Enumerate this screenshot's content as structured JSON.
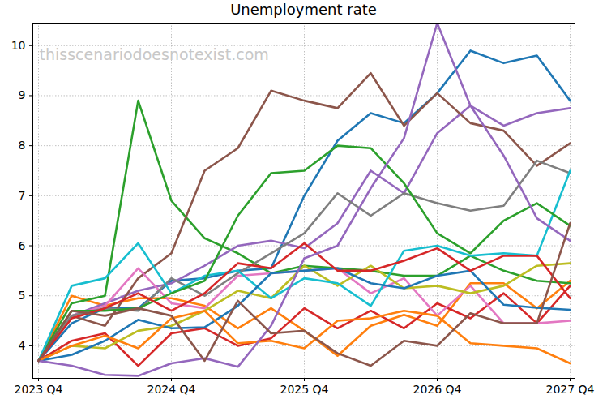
{
  "chart_data": {
    "type": "line",
    "title": "Unemployment rate",
    "annotation": "thisscenariodoesnotexist.com",
    "categories": [
      "2023 Q4",
      null,
      null,
      null,
      "2024 Q4",
      null,
      null,
      null,
      "2025 Q4",
      null,
      null,
      null,
      "2026 Q4",
      null,
      null,
      null,
      "2027 Q4"
    ],
    "ylim": [
      3.35,
      10.45
    ],
    "yticks": [
      4,
      5,
      6,
      7,
      8,
      9,
      10
    ],
    "grid": true,
    "series": [
      {
        "color": "#1f77b4",
        "values": [
          3.7,
          4.45,
          4.75,
          4.75,
          5.3,
          5.35,
          5.5,
          5.55,
          7.0,
          8.1,
          8.65,
          8.45,
          9.05,
          9.9,
          9.65,
          9.8,
          8.9
        ]
      },
      {
        "color": "#ff7f0e",
        "values": [
          3.7,
          5.0,
          4.8,
          4.95,
          4.95,
          4.8,
          4.35,
          4.75,
          4.3,
          3.8,
          4.4,
          4.62,
          4.4,
          5.25,
          5.25,
          4.75,
          5.3
        ]
      },
      {
        "color": "#2ca02c",
        "values": [
          3.7,
          4.85,
          5.0,
          8.9,
          6.9,
          6.15,
          5.85,
          5.45,
          5.6,
          5.55,
          5.5,
          5.4,
          5.4,
          5.8,
          5.5,
          5.3,
          5.25
        ]
      },
      {
        "color": "#d62728",
        "values": [
          3.7,
          4.1,
          4.25,
          3.6,
          4.25,
          4.35,
          4.0,
          4.15,
          4.75,
          4.35,
          4.7,
          4.35,
          4.85,
          4.55,
          5.05,
          4.45,
          5.2
        ]
      },
      {
        "color": "#9467bd",
        "values": [
          3.7,
          4.6,
          4.85,
          5.1,
          5.25,
          5.6,
          6.0,
          6.1,
          5.95,
          6.45,
          7.5,
          7.05,
          8.25,
          8.8,
          8.4,
          8.65,
          8.75
        ]
      },
      {
        "color": "#8c564b",
        "values": [
          3.7,
          4.6,
          4.4,
          5.35,
          5.85,
          7.5,
          7.95,
          9.1,
          8.9,
          8.75,
          9.45,
          8.4,
          9.05,
          8.45,
          8.3,
          7.6,
          8.05
        ]
      },
      {
        "color": "#e377c2",
        "values": [
          3.7,
          4.6,
          4.8,
          5.55,
          4.85,
          4.75,
          5.4,
          5.45,
          5.5,
          5.55,
          5.05,
          5.35,
          4.6,
          5.2,
          4.45,
          4.45,
          4.5
        ]
      },
      {
        "color": "#7f7f7f",
        "values": [
          3.7,
          4.6,
          4.75,
          4.7,
          5.35,
          5.0,
          5.45,
          5.85,
          6.25,
          7.05,
          6.6,
          7.05,
          6.85,
          6.7,
          6.8,
          7.7,
          7.45
        ]
      },
      {
        "color": "#bcbd22",
        "values": [
          3.7,
          4.0,
          3.95,
          4.3,
          4.4,
          4.7,
          5.1,
          4.95,
          5.6,
          5.2,
          5.6,
          5.15,
          5.2,
          5.05,
          5.2,
          5.6,
          5.65
        ]
      },
      {
        "color": "#17becf",
        "values": [
          3.7,
          5.2,
          5.35,
          6.05,
          5.05,
          5.4,
          5.5,
          4.95,
          5.35,
          5.25,
          4.8,
          5.9,
          6.0,
          5.8,
          5.85,
          5.8,
          7.5
        ]
      },
      {
        "color": "#1f77b4",
        "values": [
          3.7,
          3.82,
          4.1,
          4.52,
          4.35,
          4.37,
          4.8,
          5.45,
          5.5,
          5.55,
          5.25,
          5.15,
          5.4,
          5.5,
          4.82,
          4.76,
          4.72
        ]
      },
      {
        "color": "#ff7f0e",
        "values": [
          3.7,
          4.0,
          4.2,
          3.95,
          4.55,
          4.7,
          4.05,
          4.1,
          3.95,
          4.5,
          4.55,
          4.7,
          4.6,
          4.05,
          4.0,
          3.95,
          3.65
        ]
      },
      {
        "color": "#2ca02c",
        "values": [
          3.7,
          4.7,
          4.7,
          4.75,
          5.05,
          5.3,
          6.6,
          7.45,
          7.5,
          8.0,
          7.95,
          7.25,
          6.25,
          5.85,
          6.5,
          6.85,
          6.4
        ]
      },
      {
        "color": "#d62728",
        "values": [
          3.7,
          4.55,
          4.75,
          5.05,
          4.7,
          5.05,
          5.65,
          5.55,
          6.05,
          5.5,
          5.5,
          5.7,
          5.95,
          5.5,
          5.8,
          5.8,
          4.95
        ]
      },
      {
        "color": "#9467bd",
        "values": [
          3.7,
          3.6,
          3.42,
          3.4,
          3.65,
          3.75,
          3.58,
          4.4,
          5.75,
          6.0,
          7.15,
          8.15,
          10.45,
          8.8,
          7.8,
          6.55,
          6.1
        ]
      },
      {
        "color": "#8c564b",
        "values": [
          3.7,
          4.7,
          4.6,
          4.75,
          4.6,
          3.7,
          4.9,
          4.25,
          4.3,
          3.85,
          3.6,
          4.1,
          4.0,
          4.65,
          4.45,
          4.45,
          6.45
        ]
      }
    ]
  }
}
